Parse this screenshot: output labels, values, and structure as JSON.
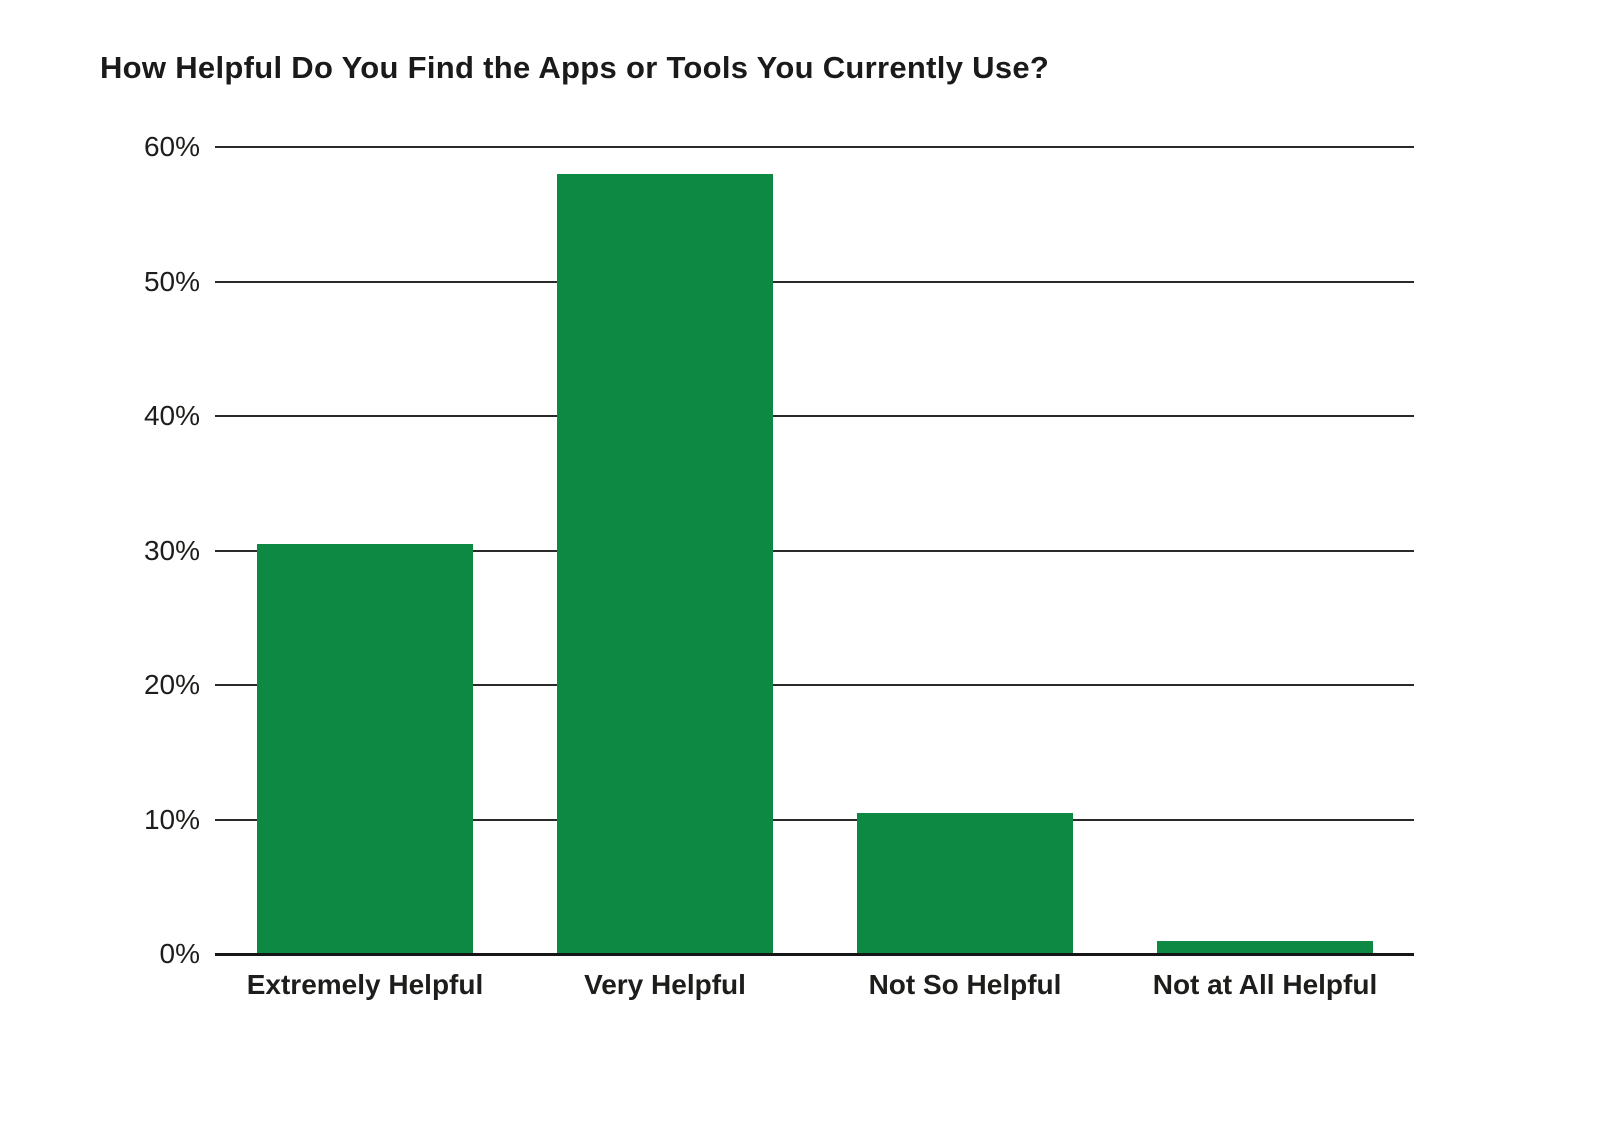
{
  "chart_data": {
    "type": "bar",
    "title": "How Helpful Do You Find the Apps or Tools You Currently Use?",
    "categories": [
      "Extremely Helpful",
      "Very Helpful",
      "Not So Helpful",
      "Not at All Helpful"
    ],
    "values": [
      30.5,
      58,
      10.5,
      1
    ],
    "value_unit": "%",
    "xlabel": "",
    "ylabel": "",
    "ylim": [
      0,
      60
    ],
    "yticks": [
      0,
      10,
      20,
      30,
      40,
      50,
      60
    ],
    "ytick_labels": [
      "0%",
      "10%",
      "20%",
      "30%",
      "40%",
      "50%",
      "60%"
    ],
    "grid": true,
    "legend_position": "none",
    "bar_color": "#0E8944",
    "gridline_color": "#2a2a2a",
    "axis_color": "#161616",
    "text_color": "#1d1d1b",
    "background_color": "#ffffff"
  }
}
